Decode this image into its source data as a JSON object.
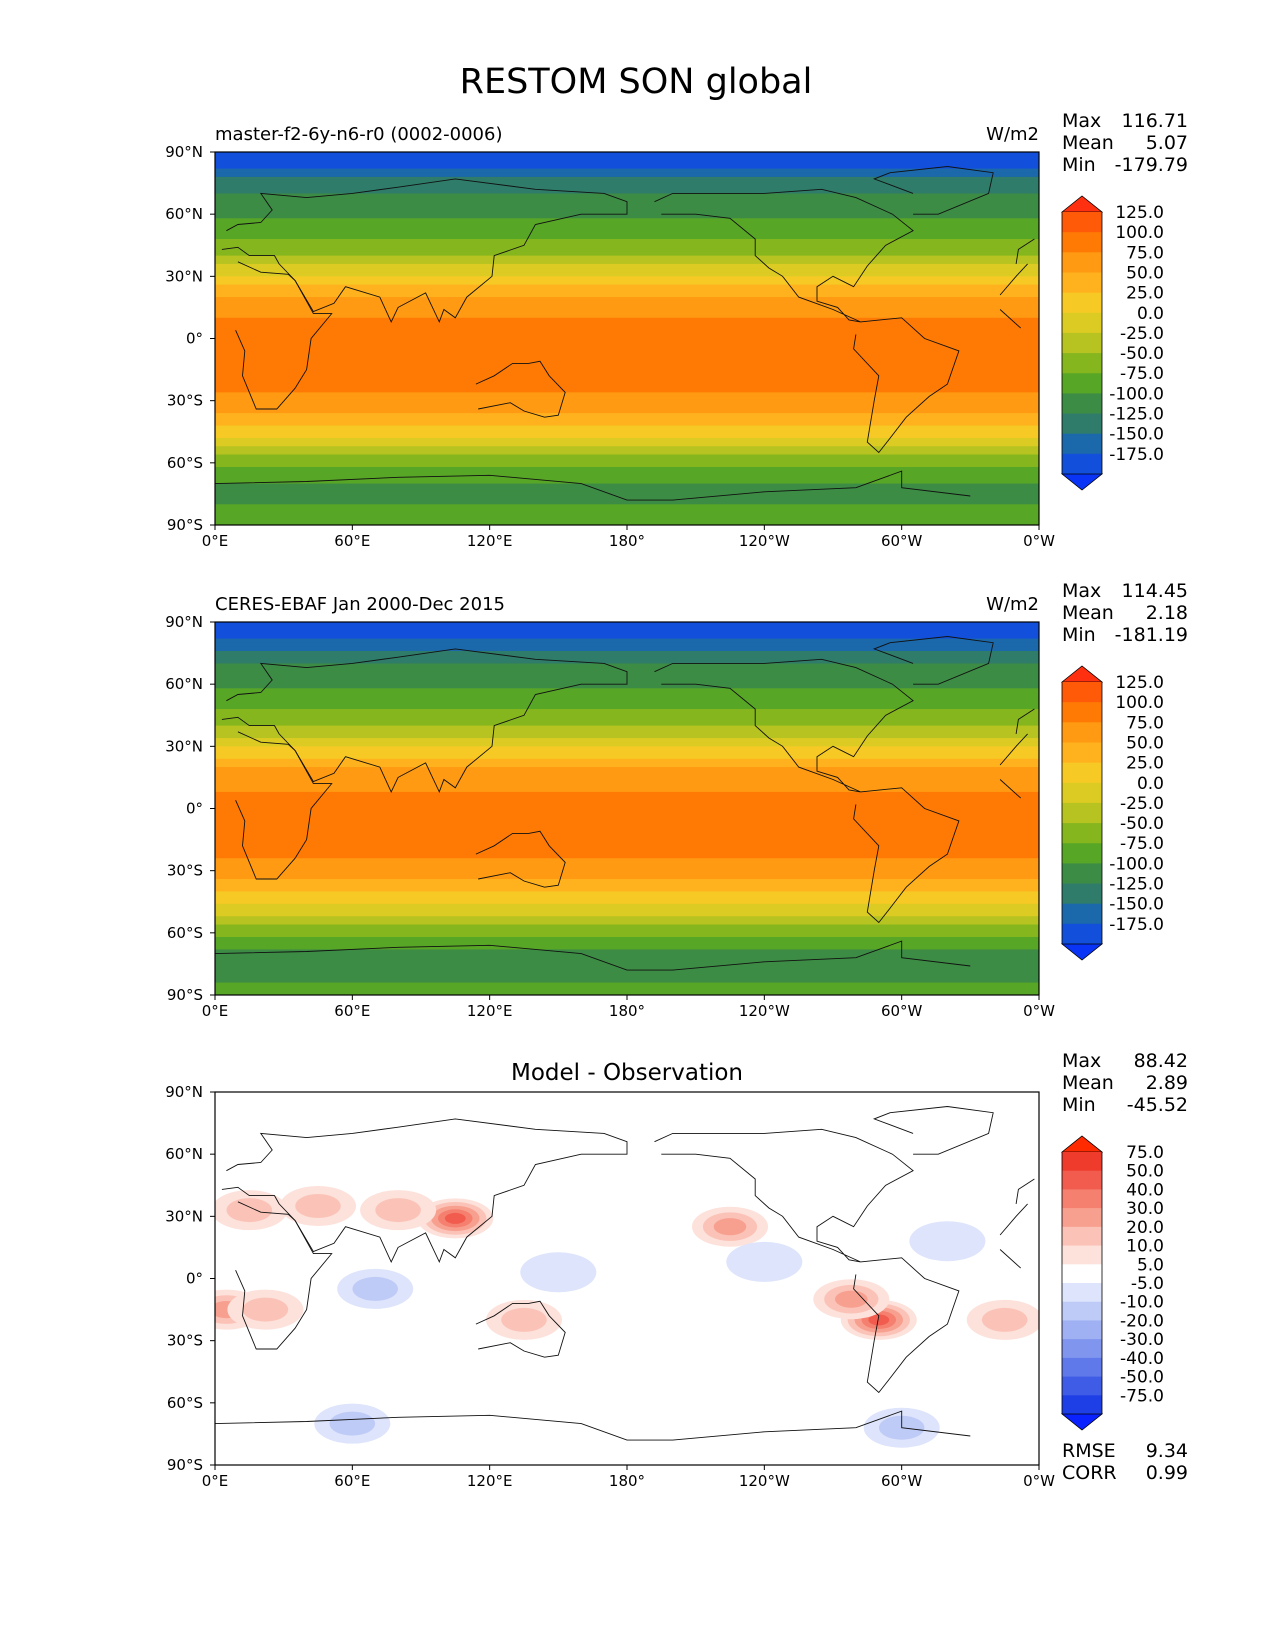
{
  "figure": {
    "title": "RESTOM SON global"
  },
  "chart_data": [
    {
      "type": "heatmap",
      "subtitle_left": "master-f2-6y-n6-r0 (0002-0006)",
      "subtitle_right": "W/m2",
      "stats": [
        {
          "label": "Max",
          "value": "116.71"
        },
        {
          "label": "Mean",
          "value": "5.07"
        },
        {
          "label": "Min",
          "value": "-179.79"
        }
      ],
      "xticks": [
        "0°E",
        "60°E",
        "120°E",
        "180°",
        "120°W",
        "60°W",
        "0°W"
      ],
      "yticks": [
        "90°N",
        "60°N",
        "30°N",
        "0°",
        "30°S",
        "60°S",
        "90°S"
      ],
      "colorbar": {
        "labels": [
          "125.0",
          "100.0",
          "75.0",
          "50.0",
          "25.0",
          "0.0",
          "-25.0",
          "-50.0",
          "-75.0",
          "-100.0",
          "-125.0",
          "-150.0",
          "-175.0"
        ],
        "colors": [
          "#ff3010",
          "#ff5a08",
          "#ff7a05",
          "#ff9a12",
          "#ffb11e",
          "#f7c925",
          "#dccb22",
          "#b7c320",
          "#86b61e",
          "#58a626",
          "#3d8c45",
          "#2f7c6a",
          "#1b68aa",
          "#1250dc",
          "#0a34f5"
        ]
      },
      "lat_profile": [
        {
          "lat": 90,
          "v": -178
        },
        {
          "lat": 84,
          "v": -170
        },
        {
          "lat": 80,
          "v": -150
        },
        {
          "lat": 76,
          "v": -132
        },
        {
          "lat": 72,
          "v": -118
        },
        {
          "lat": 68,
          "v": -108
        },
        {
          "lat": 64,
          "v": -98
        },
        {
          "lat": 60,
          "v": -90
        },
        {
          "lat": 56,
          "v": -82
        },
        {
          "lat": 52,
          "v": -72
        },
        {
          "lat": 48,
          "v": -62
        },
        {
          "lat": 44,
          "v": -50
        },
        {
          "lat": 40,
          "v": -35
        },
        {
          "lat": 36,
          "v": -15
        },
        {
          "lat": 32,
          "v": 5
        },
        {
          "lat": 28,
          "v": 25
        },
        {
          "lat": 24,
          "v": 45
        },
        {
          "lat": 20,
          "v": 62
        },
        {
          "lat": 15,
          "v": 78
        },
        {
          "lat": 10,
          "v": 88
        },
        {
          "lat": 5,
          "v": 95
        },
        {
          "lat": 0,
          "v": 100
        },
        {
          "lat": -5,
          "v": 102
        },
        {
          "lat": -10,
          "v": 104
        },
        {
          "lat": -15,
          "v": 102
        },
        {
          "lat": -20,
          "v": 97
        },
        {
          "lat": -25,
          "v": 90
        },
        {
          "lat": -30,
          "v": 80
        },
        {
          "lat": -35,
          "v": 65
        },
        {
          "lat": -40,
          "v": 45
        },
        {
          "lat": -45,
          "v": 22
        },
        {
          "lat": -50,
          "v": 0
        },
        {
          "lat": -55,
          "v": -28
        },
        {
          "lat": -60,
          "v": -55
        },
        {
          "lat": -65,
          "v": -75
        },
        {
          "lat": -70,
          "v": -88
        },
        {
          "lat": -75,
          "v": -95
        },
        {
          "lat": -80,
          "v": -88
        },
        {
          "lat": -86,
          "v": -80
        },
        {
          "lat": -90,
          "v": -78
        }
      ]
    },
    {
      "type": "heatmap",
      "subtitle_left": "CERES-EBAF Jan 2000-Dec 2015",
      "subtitle_right": "W/m2",
      "stats": [
        {
          "label": "Max",
          "value": "114.45"
        },
        {
          "label": "Mean",
          "value": "2.18"
        },
        {
          "label": "Min",
          "value": "-181.19"
        }
      ],
      "xticks": [
        "0°E",
        "60°E",
        "120°E",
        "180°",
        "120°W",
        "60°W",
        "0°W"
      ],
      "yticks": [
        "90°N",
        "60°N",
        "30°N",
        "0°",
        "30°S",
        "60°S",
        "90°S"
      ],
      "colorbar": {
        "labels": [
          "125.0",
          "100.0",
          "75.0",
          "50.0",
          "25.0",
          "0.0",
          "-25.0",
          "-50.0",
          "-75.0",
          "-100.0",
          "-125.0",
          "-150.0",
          "-175.0"
        ],
        "colors": [
          "#ff3010",
          "#ff5a08",
          "#ff7a05",
          "#ff9a12",
          "#ffb11e",
          "#f7c925",
          "#dccb22",
          "#b7c320",
          "#86b61e",
          "#58a626",
          "#3d8c45",
          "#2f7c6a",
          "#1b68aa",
          "#1250dc",
          "#0a34f5"
        ]
      },
      "lat_profile": [
        {
          "lat": 90,
          "v": -180
        },
        {
          "lat": 84,
          "v": -172
        },
        {
          "lat": 80,
          "v": -155
        },
        {
          "lat": 76,
          "v": -135
        },
        {
          "lat": 72,
          "v": -120
        },
        {
          "lat": 68,
          "v": -110
        },
        {
          "lat": 64,
          "v": -100
        },
        {
          "lat": 60,
          "v": -92
        },
        {
          "lat": 56,
          "v": -85
        },
        {
          "lat": 52,
          "v": -75
        },
        {
          "lat": 48,
          "v": -65
        },
        {
          "lat": 44,
          "v": -52
        },
        {
          "lat": 40,
          "v": -38
        },
        {
          "lat": 36,
          "v": -18
        },
        {
          "lat": 32,
          "v": 2
        },
        {
          "lat": 28,
          "v": 22
        },
        {
          "lat": 24,
          "v": 42
        },
        {
          "lat": 20,
          "v": 60
        },
        {
          "lat": 15,
          "v": 76
        },
        {
          "lat": 10,
          "v": 86
        },
        {
          "lat": 5,
          "v": 93
        },
        {
          "lat": 0,
          "v": 98
        },
        {
          "lat": -5,
          "v": 100
        },
        {
          "lat": -10,
          "v": 101
        },
        {
          "lat": -15,
          "v": 99
        },
        {
          "lat": -20,
          "v": 94
        },
        {
          "lat": -25,
          "v": 86
        },
        {
          "lat": -30,
          "v": 76
        },
        {
          "lat": -35,
          "v": 60
        },
        {
          "lat": -40,
          "v": 40
        },
        {
          "lat": -45,
          "v": 18
        },
        {
          "lat": -50,
          "v": -5
        },
        {
          "lat": -55,
          "v": -32
        },
        {
          "lat": -60,
          "v": -58
        },
        {
          "lat": -65,
          "v": -80
        },
        {
          "lat": -70,
          "v": -92
        },
        {
          "lat": -75,
          "v": -98
        },
        {
          "lat": -80,
          "v": -92
        },
        {
          "lat": -86,
          "v": -85
        },
        {
          "lat": -90,
          "v": -82
        }
      ]
    },
    {
      "type": "heatmap",
      "title": "Model - Observation",
      "stats": [
        {
          "label": "Max",
          "value": "88.42"
        },
        {
          "label": "Mean",
          "value": "2.89"
        },
        {
          "label": "Min",
          "value": "-45.52"
        }
      ],
      "bottom_stats": [
        {
          "label": "RMSE",
          "value": "9.34"
        },
        {
          "label": "CORR",
          "value": "0.99"
        }
      ],
      "xticks": [
        "0°E",
        "60°E",
        "120°E",
        "180°",
        "120°W",
        "60°W",
        "0°W"
      ],
      "yticks": [
        "90°N",
        "60°N",
        "30°N",
        "0°",
        "30°S",
        "60°S",
        "90°S"
      ],
      "colorbar": {
        "labels": [
          "75.0",
          "50.0",
          "40.0",
          "30.0",
          "20.0",
          "10.0",
          "5.0",
          "-5.0",
          "-10.0",
          "-20.0",
          "-30.0",
          "-40.0",
          "-50.0",
          "-75.0"
        ],
        "colors": [
          "#ff2a00",
          "#ee3b2c",
          "#f25c4e",
          "#f5806f",
          "#f8a090",
          "#fbc3b7",
          "#fde1db",
          "#ffffff",
          "#dde4fb",
          "#bfcbf7",
          "#9fb1f2",
          "#7f95ee",
          "#5f79ea",
          "#3f5ce6",
          "#1f3fe6",
          "#0a22ff"
        ]
      },
      "anomalies": [
        {
          "lon": 105,
          "lat": 29,
          "v": 40
        },
        {
          "lon": 80,
          "lat": 33,
          "v": 18
        },
        {
          "lon": 45,
          "lat": 35,
          "v": 15
        },
        {
          "lon": 15,
          "lat": 33,
          "v": 12
        },
        {
          "lon": 5,
          "lat": -15,
          "v": 22
        },
        {
          "lon": 22,
          "lat": -15,
          "v": 12
        },
        {
          "lon": -70,
          "lat": -20,
          "v": 40
        },
        {
          "lon": -82,
          "lat": -10,
          "v": 25
        },
        {
          "lon": -135,
          "lat": 25,
          "v": 22
        },
        {
          "lon": -15,
          "lat": -20,
          "v": 15
        },
        {
          "lon": 135,
          "lat": -20,
          "v": 10
        },
        {
          "lon": 70,
          "lat": -5,
          "v": -10
        },
        {
          "lon": 150,
          "lat": 3,
          "v": -8
        },
        {
          "lon": -120,
          "lat": 8,
          "v": -6
        },
        {
          "lon": 60,
          "lat": -70,
          "v": -10
        },
        {
          "lon": -60,
          "lat": -72,
          "v": -12
        },
        {
          "lon": -40,
          "lat": 18,
          "v": -8
        }
      ]
    }
  ]
}
